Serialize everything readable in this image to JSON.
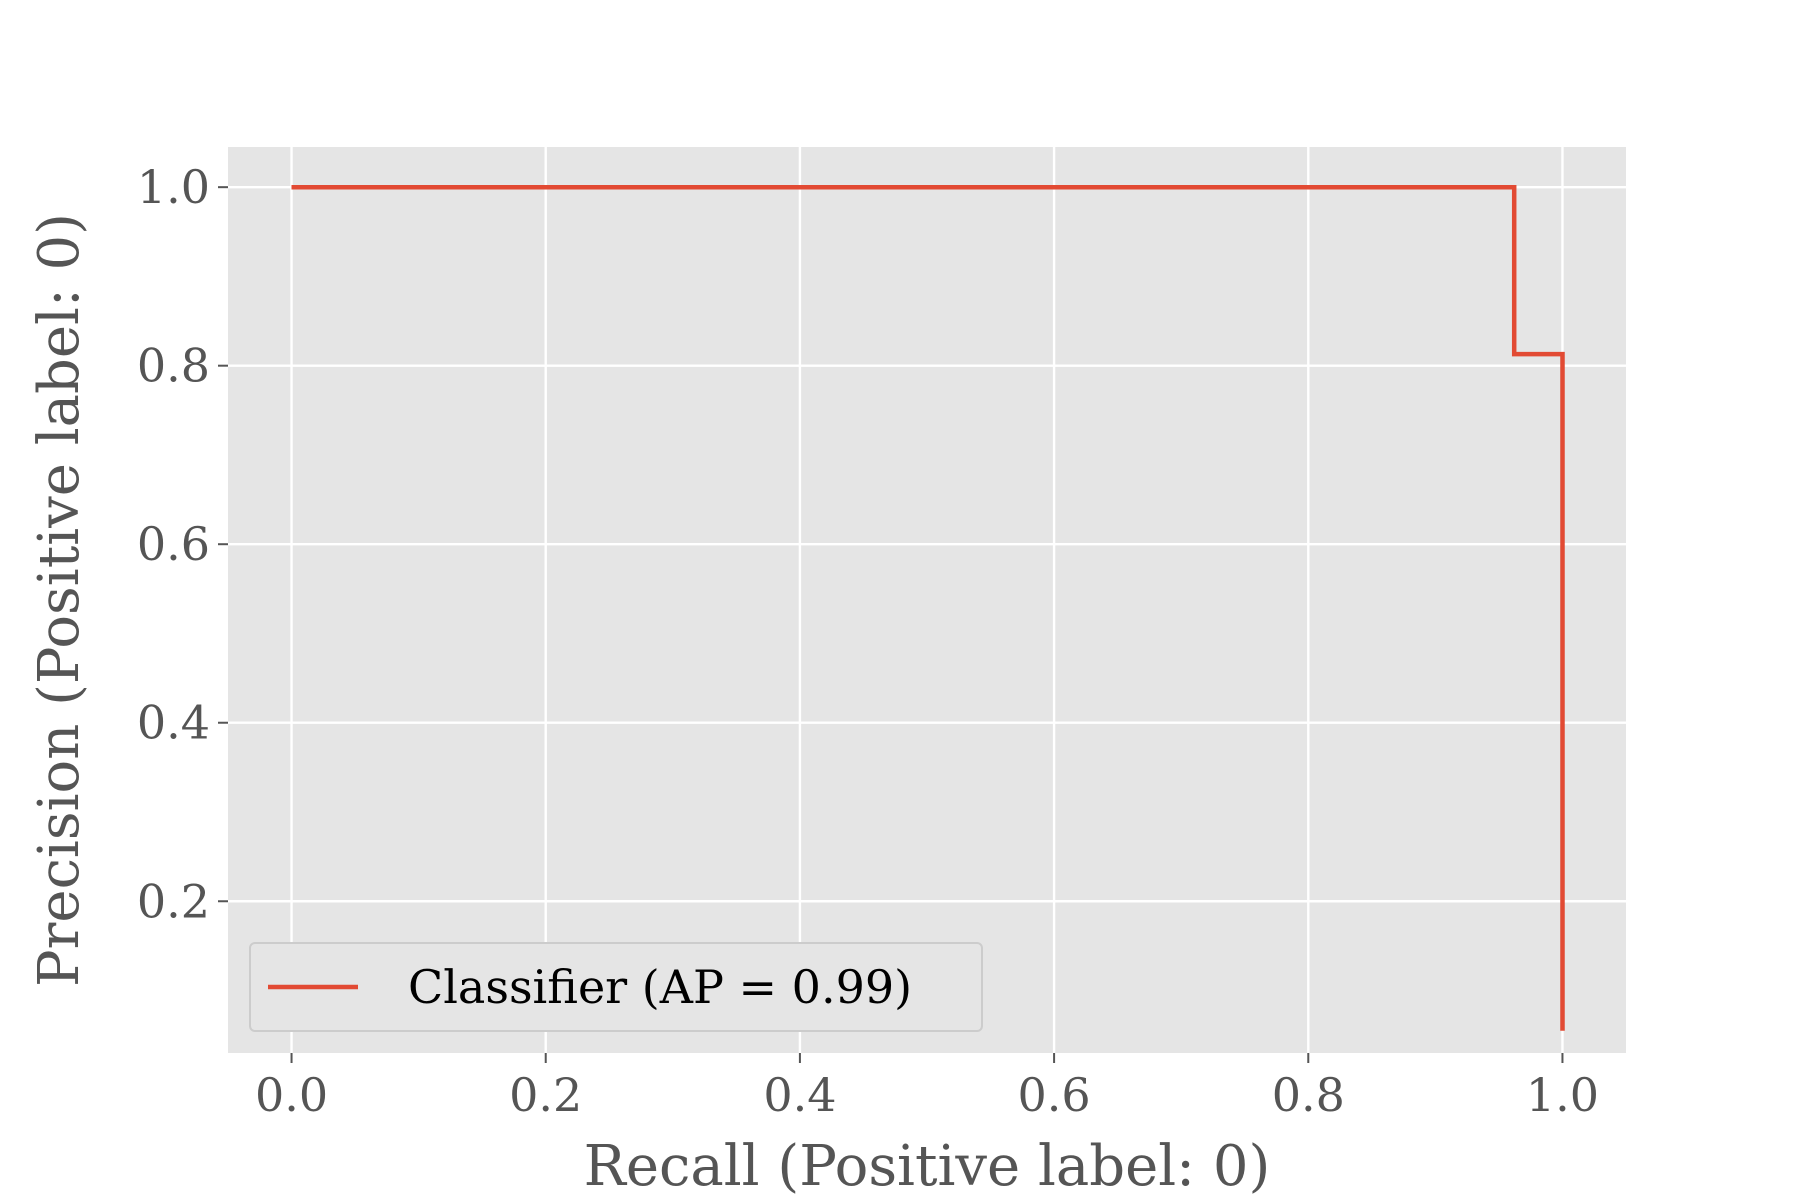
{
  "chart_data": {
    "type": "line",
    "style": "step",
    "title": "",
    "xlabel": "Recall (Positive label: 0)",
    "ylabel": "Precision (Positive label: 0)",
    "xlim": [
      -0.05,
      1.05
    ],
    "ylim": [
      0.03,
      1.045
    ],
    "xticks": [
      0.0,
      0.2,
      0.4,
      0.6,
      0.8,
      1.0
    ],
    "xtick_labels": [
      "0.0",
      "0.2",
      "0.4",
      "0.6",
      "0.8",
      "1.0"
    ],
    "yticks": [
      0.2,
      0.4,
      0.6,
      0.8,
      1.0
    ],
    "ytick_labels": [
      "0.2",
      "0.4",
      "0.6",
      "0.8",
      "1.0"
    ],
    "grid": true,
    "legend_position": "lower-left",
    "series": [
      {
        "name": "Classifier (AP = 0.99)",
        "color": "#E24A33",
        "points": [
          {
            "x": 0.0,
            "y": 1.0
          },
          {
            "x": 0.962,
            "y": 1.0
          },
          {
            "x": 0.962,
            "y": 0.813
          },
          {
            "x": 1.0,
            "y": 0.813
          },
          {
            "x": 1.0,
            "y": 0.055
          }
        ]
      }
    ],
    "colors": {
      "plot_background": "#E5E5E5",
      "grid": "#FFFFFF",
      "tick_text": "#555555",
      "legend_background": "#E5E5E5",
      "legend_border": "#CCCCCC"
    }
  }
}
